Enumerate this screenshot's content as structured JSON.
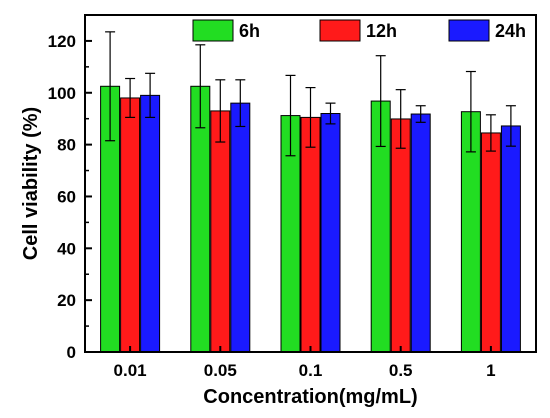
{
  "chart_data": {
    "type": "bar",
    "title": "",
    "xlabel": "Concentration(mg/mL)",
    "ylabel": "Cell viability (%)",
    "categories": [
      "0.01",
      "0.05",
      "0.1",
      "0.5",
      "1"
    ],
    "ylim": [
      0,
      130
    ],
    "yticks": [
      "0",
      "20",
      "40",
      "60",
      "80",
      "100",
      "120"
    ],
    "legend_position": "top",
    "grid": false,
    "series": [
      {
        "name": "6h",
        "color": "#22dd22",
        "values": [
          102.5,
          102.5,
          91.2,
          96.8,
          92.7
        ],
        "errors": [
          21.0,
          16.0,
          15.5,
          17.5,
          15.5
        ]
      },
      {
        "name": "12h",
        "color": "#ff1a1a",
        "values": [
          98.0,
          93.0,
          90.5,
          89.9,
          84.5
        ],
        "errors": [
          7.5,
          12.0,
          11.5,
          11.3,
          7.0
        ]
      },
      {
        "name": "24h",
        "color": "#1a1aff",
        "values": [
          99.0,
          96.0,
          92.0,
          91.8,
          87.2
        ],
        "errors": [
          8.5,
          9.0,
          4.0,
          3.2,
          7.8
        ]
      }
    ]
  }
}
